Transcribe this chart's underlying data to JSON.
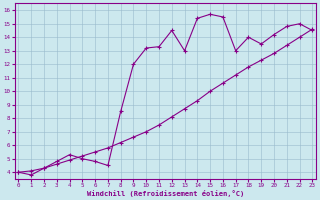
{
  "xlabel": "Windchill (Refroidissement éolien,°C)",
  "background_color": "#cce8ee",
  "line_color": "#880088",
  "grid_color": "#99bbcc",
  "x_data": [
    0,
    1,
    2,
    3,
    4,
    5,
    6,
    7,
    8,
    9,
    10,
    11,
    12,
    13,
    14,
    15,
    16,
    17,
    18,
    19,
    20,
    21,
    22,
    23
  ],
  "y_zigzag": [
    4.0,
    3.8,
    4.3,
    4.8,
    5.3,
    5.0,
    4.8,
    4.5,
    8.5,
    12.0,
    13.2,
    13.3,
    14.5,
    13.0,
    15.4,
    15.7,
    15.5,
    13.0,
    14.0,
    13.5,
    14.2,
    14.8,
    15.0,
    14.5
  ],
  "y_line": [
    4.0,
    4.1,
    4.3,
    4.6,
    4.9,
    5.2,
    5.5,
    5.8,
    6.2,
    6.6,
    7.0,
    7.5,
    8.1,
    8.7,
    9.3,
    10.0,
    10.6,
    11.2,
    11.8,
    12.3,
    12.8,
    13.4,
    14.0,
    14.6
  ],
  "xlim": [
    -0.3,
    23.3
  ],
  "ylim": [
    3.5,
    16.5
  ],
  "xticks": [
    0,
    1,
    2,
    3,
    4,
    5,
    6,
    7,
    8,
    9,
    10,
    11,
    12,
    13,
    14,
    15,
    16,
    17,
    18,
    19,
    20,
    21,
    22,
    23
  ],
  "yticks": [
    4,
    5,
    6,
    7,
    8,
    9,
    10,
    11,
    12,
    13,
    14,
    15,
    16
  ]
}
